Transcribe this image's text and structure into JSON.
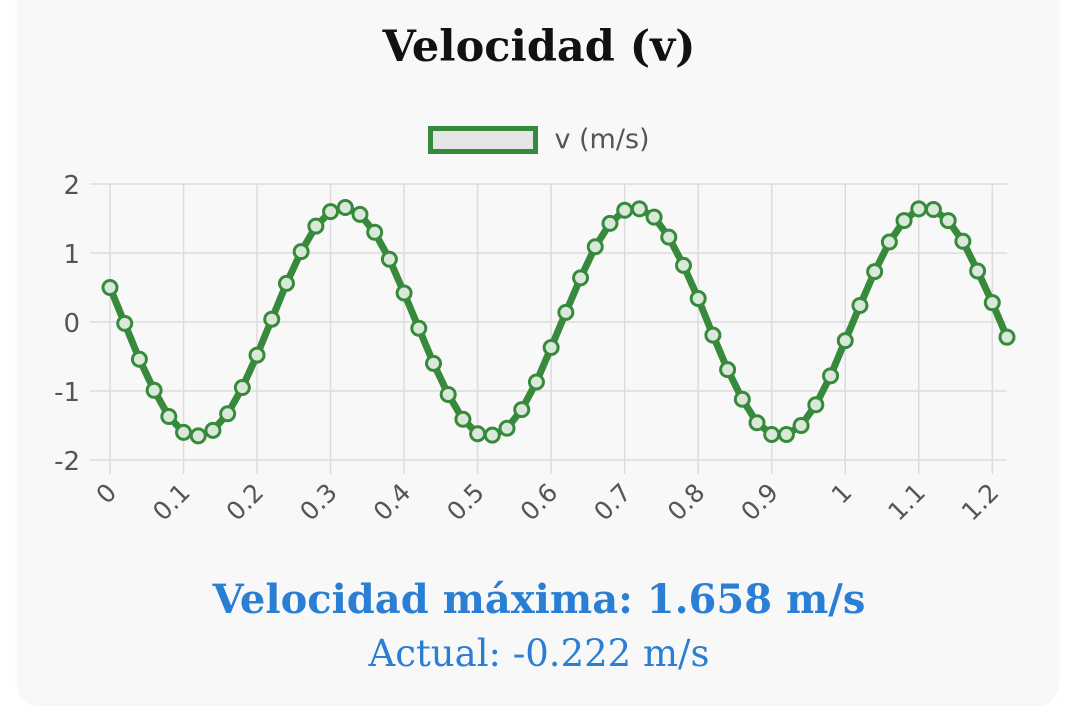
{
  "title": "Velocidad (v)",
  "legend": {
    "label": "v (m/s)"
  },
  "summary": {
    "max_text": "Velocidad máxima: 1.658 m/s",
    "current_text": "Actual: -0.222 m/s"
  },
  "colors": {
    "line": "#378a3c",
    "grid": "#dcdcdc",
    "tick_text": "#555555",
    "summary_text": "#2a7fd4"
  },
  "chart_data": {
    "type": "line",
    "title": "Velocidad (v)",
    "xlabel": "",
    "ylabel": "",
    "xlim": [
      0,
      1.22
    ],
    "ylim": [
      -2,
      2
    ],
    "x_ticks": [
      "0",
      "0.1",
      "0.2",
      "0.3",
      "0.4",
      "0.5",
      "0.6",
      "0.7",
      "0.8",
      "0.9",
      "1",
      "1.1",
      "1.2"
    ],
    "y_ticks": [
      "2",
      "1",
      "0",
      "-1",
      "-2"
    ],
    "grid": true,
    "legend_position": "top-center",
    "series": [
      {
        "name": "v (m/s)",
        "x": [
          0,
          0.02,
          0.04,
          0.06,
          0.08,
          0.1,
          0.12,
          0.14,
          0.16,
          0.18,
          0.2,
          0.22,
          0.24,
          0.26,
          0.28,
          0.3,
          0.32,
          0.34,
          0.36,
          0.38,
          0.4,
          0.42,
          0.44,
          0.46,
          0.48,
          0.5,
          0.52,
          0.54,
          0.56,
          0.58,
          0.6,
          0.62,
          0.64,
          0.66,
          0.68,
          0.7,
          0.72,
          0.74,
          0.76,
          0.78,
          0.8,
          0.82,
          0.84,
          0.86,
          0.88,
          0.9,
          0.92,
          0.94,
          0.96,
          0.98,
          1.0,
          1.02,
          1.04,
          1.06,
          1.08,
          1.1,
          1.12,
          1.14,
          1.16,
          1.18,
          1.2,
          1.22
        ],
        "values": [
          0.5,
          -0.02,
          -0.54,
          -0.99,
          -1.37,
          -1.6,
          -1.65,
          -1.57,
          -1.33,
          -0.95,
          -0.48,
          0.04,
          0.56,
          1.02,
          1.39,
          1.6,
          1.66,
          1.56,
          1.3,
          0.91,
          0.42,
          -0.09,
          -0.6,
          -1.05,
          -1.41,
          -1.62,
          -1.64,
          -1.54,
          -1.27,
          -0.87,
          -0.37,
          0.14,
          0.64,
          1.09,
          1.43,
          1.62,
          1.64,
          1.52,
          1.23,
          0.82,
          0.34,
          -0.19,
          -0.69,
          -1.12,
          -1.46,
          -1.63,
          -1.63,
          -1.5,
          -1.2,
          -0.78,
          -0.27,
          0.24,
          0.73,
          1.16,
          1.47,
          1.64,
          1.63,
          1.47,
          1.17,
          0.74,
          0.28,
          -0.22
        ]
      }
    ]
  }
}
